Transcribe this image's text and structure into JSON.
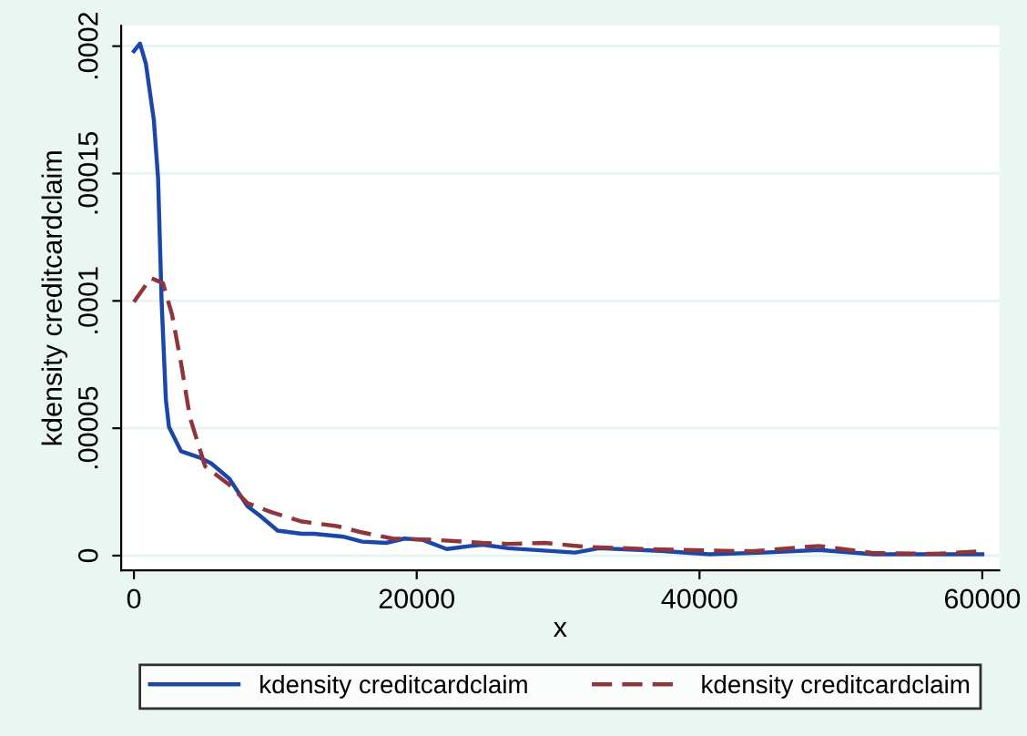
{
  "chart_data": {
    "type": "line",
    "xlabel": "x",
    "ylabel": "kdensity creditcardclaim",
    "xlim": [
      -900,
      61200
    ],
    "ylim": [
      -5.8e-06,
      0.000208
    ],
    "xticks": [
      0,
      20000,
      40000,
      60000
    ],
    "yticks": [
      {
        "value": 0,
        "label": "0"
      },
      {
        "value": 5e-05,
        "label": ".00005"
      },
      {
        "value": 0.0001,
        "label": ".0001"
      },
      {
        "value": 0.00015,
        "label": ".00015"
      },
      {
        "value": 0.0002,
        "label": ".0002"
      }
    ],
    "grid": "y",
    "legend": "bottom",
    "series": [
      {
        "name": "kdensity creditcardclaim",
        "color": "#1a47a8",
        "line_style": "solid",
        "x": [
          0,
          430,
          850,
          1410,
          1710,
          1960,
          2260,
          2480,
          3330,
          4610,
          5470,
          6750,
          8030,
          8880,
          10160,
          11870,
          12720,
          14860,
          16140,
          17850,
          19130,
          20410,
          22120,
          23830,
          24680,
          26470,
          31200,
          32900,
          37240,
          40690,
          44570,
          48450,
          52330,
          56640,
          60000
        ],
        "values": [
          0.000198,
          0.000201,
          0.000193,
          0.000171,
          0.000148,
          9.96e-05,
          6.13e-05,
          5.05e-05,
          4.1e-05,
          3.86e-05,
          3.62e-05,
          3.02e-05,
          1.94e-05,
          1.58e-05,
          9.8e-06,
          8.6e-06,
          8.6e-06,
          7.4e-06,
          5.5e-06,
          5e-06,
          6.7e-06,
          6.2e-06,
          2.6e-06,
          3.8e-06,
          4.3e-06,
          2.9e-06,
          1.2e-06,
          2.9e-06,
          1.9e-06,
          5e-07,
          1.2e-06,
          2.2e-06,
          5e-07,
          5e-07,
          5e-07
        ]
      },
      {
        "name": "kdensity creditcardclaim",
        "color": "#90353b",
        "line_style": "dashed",
        "x": [
          0,
          1200,
          2050,
          2690,
          3330,
          3970,
          5040,
          6750,
          8030,
          9740,
          11870,
          14430,
          16140,
          18280,
          21270,
          24680,
          26470,
          29050,
          32070,
          37240,
          43700,
          48450,
          52330,
          56640,
          60000
        ],
        "values": [
          9.96e-05,
          0.000109,
          0.000107,
          9.48e-05,
          7.57e-05,
          5.41e-05,
          3.5e-05,
          2.78e-05,
          2.06e-05,
          1.7e-05,
          1.34e-05,
          1.15e-05,
          9.1e-06,
          6.7e-06,
          6.2e-06,
          5e-06,
          4.6e-06,
          5e-06,
          3.4e-06,
          2.4e-06,
          1.7e-06,
          3.8e-06,
          1e-06,
          7e-07,
          1.7e-06
        ]
      }
    ]
  }
}
